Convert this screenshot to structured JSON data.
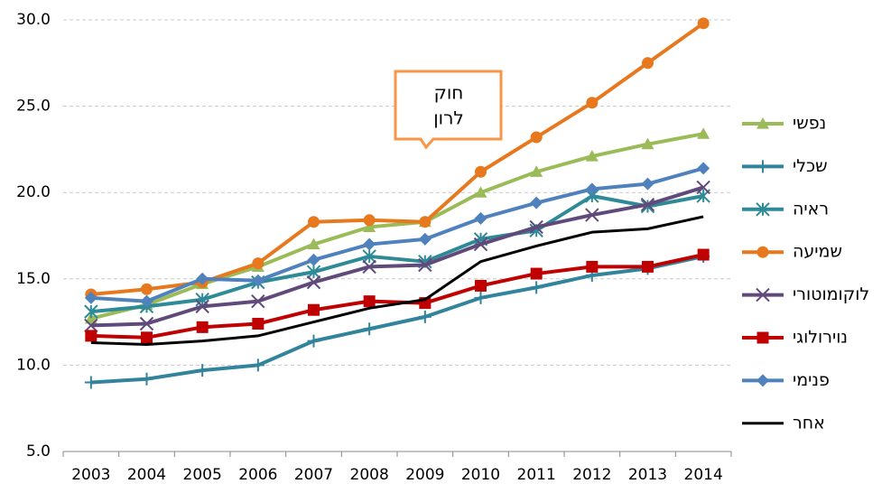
{
  "chart_data": {
    "type": "line",
    "categories": [
      "2003",
      "2004",
      "2005",
      "2006",
      "2007",
      "2008",
      "2009",
      "2010",
      "2011",
      "2012",
      "2013",
      "2014"
    ],
    "ylim": [
      5,
      30
    ],
    "yticks": [
      {
        "value": 5,
        "label": "5.0"
      },
      {
        "value": 10,
        "label": "10.0"
      },
      {
        "value": 15,
        "label": "15.0"
      },
      {
        "value": 20,
        "label": "20.0"
      },
      {
        "value": 25,
        "label": "25.0"
      },
      {
        "value": 30,
        "label": "30.0"
      }
    ],
    "grid": true,
    "legend": "right",
    "annotation": [
      "חוק",
      "לרון"
    ],
    "series": [
      {
        "name": "נפשי",
        "color": "#9bbb59",
        "marker": "triangle",
        "values": [
          12.7,
          13.5,
          14.7,
          15.7,
          17.0,
          18.0,
          18.3,
          20.0,
          21.2,
          22.1,
          22.8,
          23.4
        ]
      },
      {
        "name": "שכלי",
        "color": "#31849b",
        "marker": "plus",
        "values": [
          9.0,
          9.2,
          9.7,
          10.0,
          11.4,
          12.1,
          12.8,
          13.9,
          14.5,
          15.2,
          15.6,
          16.3
        ]
      },
      {
        "name": "ראיה",
        "color": "#2f8a97",
        "marker": "star",
        "values": [
          13.1,
          13.4,
          13.8,
          14.8,
          15.4,
          16.3,
          16.0,
          17.3,
          17.8,
          19.8,
          19.2,
          19.8
        ]
      },
      {
        "name": "שמיעה",
        "color": "#e8781e",
        "marker": "circle",
        "values": [
          14.1,
          14.4,
          14.8,
          15.9,
          18.3,
          18.4,
          18.3,
          21.2,
          23.2,
          25.2,
          27.5,
          29.8
        ]
      },
      {
        "name": "לוקומוטורי",
        "color": "#604a7b",
        "marker": "x",
        "values": [
          12.3,
          12.4,
          13.4,
          13.7,
          14.8,
          15.7,
          15.8,
          17.0,
          18.0,
          18.7,
          19.3,
          20.3
        ]
      },
      {
        "name": "נוירולוגי",
        "color": "#c00000",
        "marker": "square",
        "values": [
          11.7,
          11.6,
          12.2,
          12.4,
          13.2,
          13.7,
          13.6,
          14.6,
          15.3,
          15.7,
          15.7,
          16.4
        ]
      },
      {
        "name": "פנימי",
        "color": "#4f81bd",
        "marker": "diamond",
        "values": [
          13.9,
          13.7,
          15.0,
          14.9,
          16.1,
          17.0,
          17.3,
          18.5,
          19.4,
          20.2,
          20.5,
          21.4
        ]
      },
      {
        "name": "אחר",
        "color": "#000000",
        "values": [
          11.3,
          11.2,
          11.4,
          11.7,
          12.5,
          13.3,
          13.8,
          16.0,
          16.9,
          17.7,
          17.9,
          18.6
        ]
      }
    ]
  }
}
